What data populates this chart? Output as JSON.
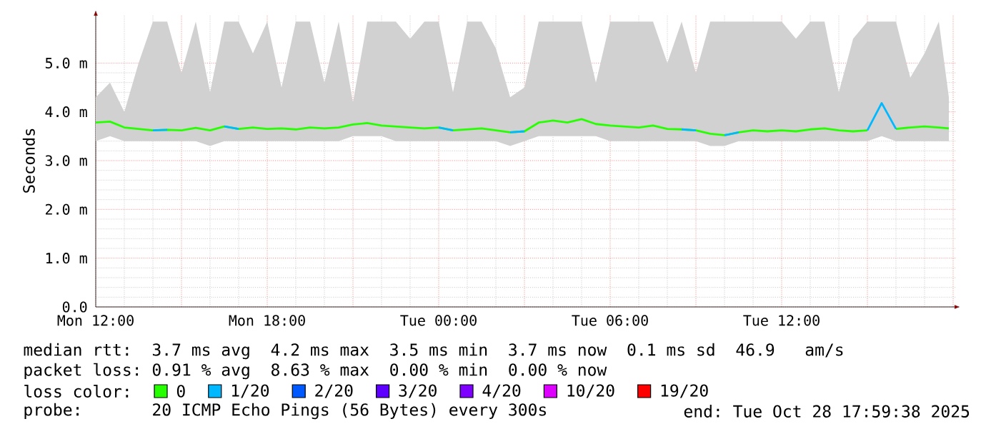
{
  "chart_data": {
    "type": "line",
    "ylabel": "Seconds",
    "legend_title": "loss color:",
    "x": [
      "2025-10-27T12:00",
      "2025-10-27T12:30",
      "2025-10-27T13:00",
      "2025-10-27T13:30",
      "2025-10-27T14:00",
      "2025-10-27T14:30",
      "2025-10-27T15:00",
      "2025-10-27T15:30",
      "2025-10-27T16:00",
      "2025-10-27T16:30",
      "2025-10-27T17:00",
      "2025-10-27T17:30",
      "2025-10-27T18:00",
      "2025-10-27T18:30",
      "2025-10-27T19:00",
      "2025-10-27T19:30",
      "2025-10-27T20:00",
      "2025-10-27T20:30",
      "2025-10-27T21:00",
      "2025-10-27T21:30",
      "2025-10-27T22:00",
      "2025-10-27T22:30",
      "2025-10-27T23:00",
      "2025-10-27T23:30",
      "2025-10-28T00:00",
      "2025-10-28T00:30",
      "2025-10-28T01:00",
      "2025-10-28T01:30",
      "2025-10-28T02:00",
      "2025-10-28T02:30",
      "2025-10-28T03:00",
      "2025-10-28T03:30",
      "2025-10-28T04:00",
      "2025-10-28T04:30",
      "2025-10-28T05:00",
      "2025-10-28T05:30",
      "2025-10-28T06:00",
      "2025-10-28T06:30",
      "2025-10-28T07:00",
      "2025-10-28T07:30",
      "2025-10-28T08:00",
      "2025-10-28T08:30",
      "2025-10-28T09:00",
      "2025-10-28T09:30",
      "2025-10-28T10:00",
      "2025-10-28T10:30",
      "2025-10-28T11:00",
      "2025-10-28T11:30",
      "2025-10-28T12:00",
      "2025-10-28T12:30",
      "2025-10-28T13:00",
      "2025-10-28T13:30",
      "2025-10-28T14:00",
      "2025-10-28T14:30",
      "2025-10-28T15:00",
      "2025-10-28T15:30",
      "2025-10-28T16:00",
      "2025-10-28T16:30",
      "2025-10-28T17:00",
      "2025-10-28T17:30",
      "2025-10-28T17:51"
    ],
    "series": [
      {
        "name": "0",
        "color": "#26ff00",
        "values": [
          3.78,
          3.8,
          3.68,
          3.65,
          3.62,
          3.63,
          3.62,
          3.67,
          3.62,
          3.7,
          3.65,
          3.68,
          3.65,
          3.66,
          3.64,
          3.68,
          3.66,
          3.68,
          3.74,
          3.77,
          3.72,
          3.7,
          3.68,
          3.66,
          3.68,
          3.62,
          3.64,
          3.66,
          3.62,
          3.58,
          3.6,
          3.78,
          3.82,
          3.78,
          3.85,
          3.75,
          3.72,
          3.7,
          3.68,
          3.72,
          3.65,
          3.64,
          3.62,
          3.55,
          3.52,
          3.58,
          3.62,
          3.6,
          3.62,
          3.6,
          3.64,
          3.66,
          3.62,
          3.6,
          3.62,
          null,
          3.65,
          3.68,
          3.7,
          3.68,
          3.66
        ],
        "lower": [
          3.4,
          3.5,
          3.4,
          3.4,
          3.4,
          3.4,
          3.4,
          3.4,
          3.3,
          3.4,
          3.4,
          3.4,
          3.4,
          3.4,
          3.4,
          3.4,
          3.4,
          3.4,
          3.5,
          3.5,
          3.5,
          3.4,
          3.4,
          3.4,
          3.4,
          3.4,
          3.4,
          3.4,
          3.4,
          3.3,
          3.4,
          3.5,
          3.5,
          3.5,
          3.5,
          3.5,
          3.4,
          3.4,
          3.4,
          3.4,
          3.4,
          3.4,
          3.4,
          3.3,
          3.3,
          3.4,
          3.4,
          3.4,
          3.4,
          3.4,
          3.4,
          3.4,
          3.4,
          3.4,
          3.4,
          3.5,
          3.4,
          3.4,
          3.4,
          3.4,
          3.4
        ],
        "upper": [
          4.3,
          4.6,
          4.0,
          5.0,
          5.85,
          5.85,
          4.8,
          5.85,
          4.4,
          5.85,
          5.85,
          5.2,
          5.85,
          4.5,
          5.85,
          5.85,
          4.6,
          5.85,
          4.2,
          5.85,
          5.85,
          5.85,
          5.5,
          5.85,
          5.85,
          4.4,
          5.85,
          5.85,
          5.3,
          4.3,
          4.5,
          5.85,
          5.85,
          5.85,
          5.85,
          4.6,
          5.85,
          5.85,
          5.85,
          5.85,
          5.0,
          5.85,
          4.8,
          5.85,
          5.85,
          5.85,
          5.85,
          5.85,
          5.85,
          5.5,
          5.85,
          5.85,
          4.4,
          5.5,
          5.85,
          5.85,
          5.85,
          4.7,
          5.2,
          5.85,
          4.3
        ]
      },
      {
        "name": "1/20",
        "color": "#00b8ff",
        "values": [
          null,
          null,
          null,
          null,
          3.62,
          3.63,
          null,
          null,
          null,
          3.7,
          3.65,
          null,
          null,
          null,
          null,
          null,
          null,
          null,
          null,
          null,
          null,
          null,
          null,
          null,
          3.68,
          3.62,
          null,
          null,
          null,
          3.58,
          3.6,
          null,
          null,
          null,
          null,
          null,
          null,
          null,
          null,
          null,
          null,
          3.64,
          3.62,
          null,
          3.52,
          3.58,
          null,
          null,
          null,
          null,
          null,
          null,
          null,
          null,
          3.62,
          4.18,
          3.65,
          null,
          null,
          null,
          null
        ]
      },
      {
        "name": "2/20",
        "color": "#0059ff",
        "values": [
          null,
          null,
          null,
          null,
          null,
          null,
          null,
          null,
          null,
          null,
          null,
          null,
          null,
          null,
          null,
          null,
          null,
          null,
          null,
          null,
          null,
          null,
          null,
          null,
          null,
          null,
          null,
          null,
          null,
          null,
          null,
          null,
          null,
          null,
          null,
          null,
          null,
          null,
          null,
          null,
          null,
          null,
          null,
          null,
          null,
          null,
          null,
          null,
          null,
          null,
          null,
          null,
          null,
          null,
          null,
          null,
          null,
          null,
          null,
          null,
          null
        ]
      },
      {
        "name": "3/20",
        "color": "#5e00ff",
        "values": [
          null,
          null,
          null,
          null,
          null,
          null,
          null,
          null,
          null,
          null,
          null,
          null,
          null,
          null,
          null,
          null,
          null,
          null,
          null,
          null,
          null,
          null,
          null,
          null,
          null,
          null,
          null,
          null,
          null,
          null,
          null,
          null,
          null,
          null,
          null,
          null,
          null,
          null,
          null,
          null,
          null,
          null,
          null,
          null,
          null,
          null,
          null,
          null,
          null,
          null,
          null,
          null,
          null,
          null,
          null,
          null,
          null,
          null,
          null,
          null,
          null
        ]
      },
      {
        "name": "4/20",
        "color": "#7e00ff",
        "values": [
          null,
          null,
          null,
          null,
          null,
          null,
          null,
          null,
          null,
          null,
          null,
          null,
          null,
          null,
          null,
          null,
          null,
          null,
          null,
          null,
          null,
          null,
          null,
          null,
          null,
          null,
          null,
          null,
          null,
          null,
          null,
          null,
          null,
          null,
          null,
          null,
          null,
          null,
          null,
          null,
          null,
          null,
          null,
          null,
          null,
          null,
          null,
          null,
          null,
          null,
          null,
          null,
          null,
          null,
          null,
          null,
          null,
          null,
          null,
          null,
          null
        ]
      },
      {
        "name": "10/20",
        "color": "#dd00ff",
        "values": [
          null,
          null,
          null,
          null,
          null,
          null,
          null,
          null,
          null,
          null,
          null,
          null,
          null,
          null,
          null,
          null,
          null,
          null,
          null,
          null,
          null,
          null,
          null,
          null,
          null,
          null,
          null,
          null,
          null,
          null,
          null,
          null,
          null,
          null,
          null,
          null,
          null,
          null,
          null,
          null,
          null,
          null,
          null,
          null,
          null,
          null,
          null,
          null,
          null,
          null,
          null,
          null,
          null,
          null,
          null,
          null,
          null,
          null,
          null,
          null,
          null
        ]
      },
      {
        "name": "19/20",
        "color": "#ff0000",
        "values": [
          null,
          null,
          null,
          null,
          null,
          null,
          null,
          null,
          null,
          null,
          null,
          null,
          null,
          null,
          null,
          null,
          null,
          null,
          null,
          null,
          null,
          null,
          null,
          null,
          null,
          null,
          null,
          null,
          null,
          null,
          null,
          null,
          null,
          null,
          null,
          null,
          null,
          null,
          null,
          null,
          null,
          null,
          null,
          null,
          null,
          null,
          null,
          null,
          null,
          null,
          null,
          null,
          null,
          null,
          null,
          null,
          null,
          null,
          null,
          null,
          null
        ]
      }
    ],
    "xlim": [
      "2025-10-27T12:00",
      "2025-10-28T18:06"
    ],
    "xticks": [
      {
        "value": "2025-10-27T12:00",
        "label": "Mon 12:00"
      },
      {
        "value": "2025-10-27T15:00",
        "label": null
      },
      {
        "value": "2025-10-27T18:00",
        "label": "Mon 18:00"
      },
      {
        "value": "2025-10-27T21:00",
        "label": null
      },
      {
        "value": "2025-10-28T00:00",
        "label": "Tue 00:00"
      },
      {
        "value": "2025-10-28T03:00",
        "label": null
      },
      {
        "value": "2025-10-28T06:00",
        "label": "Tue 06:00"
      },
      {
        "value": "2025-10-28T09:00",
        "label": null
      },
      {
        "value": "2025-10-28T12:00",
        "label": "Tue 12:00"
      },
      {
        "value": "2025-10-28T15:00",
        "label": null
      },
      {
        "value": "2025-10-28T18:00",
        "label": null
      }
    ],
    "ylim": [
      0,
      6
    ],
    "yticks": [
      {
        "value": 0,
        "label": "0.0"
      },
      {
        "value": 1,
        "label": "1.0 m"
      },
      {
        "value": 2,
        "label": "2.0 m"
      },
      {
        "value": 3,
        "label": "3.0 m"
      },
      {
        "value": 4,
        "label": "4.0 m"
      },
      {
        "value": 5,
        "label": "5.0 m"
      }
    ],
    "grid": true,
    "legend": "bottom",
    "annotations": [
      "median rtt:  3.7 ms avg  4.2 ms max  3.5 ms min  3.7 ms now  0.1 ms sd  46.9   am/s",
      "packet loss: 0.91 % avg  8.63 % max  0.00 % min  0.00 % now",
      "probe:       20 ICMP Echo Pings (56 Bytes) every 300s",
      "end: Tue Oct 28 17:59:38 2025"
    ]
  }
}
